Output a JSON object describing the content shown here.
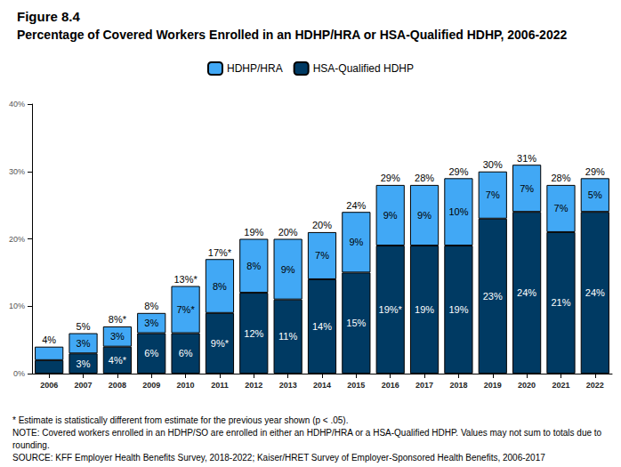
{
  "chart_data": {
    "type": "bar",
    "stacked": true,
    "data_labels": true,
    "grid": false,
    "legend": "top",
    "title": "Figure 8.4",
    "subtitle": "Percentage of Covered Workers Enrolled in an HDHP/HRA or HSA-Qualified HDHP, 2006-2022",
    "categories": [
      "2006",
      "2007",
      "2008",
      "2009",
      "2010",
      "2011",
      "2012",
      "2013",
      "2014",
      "2015",
      "2016",
      "2017",
      "2018",
      "2019",
      "2020",
      "2021",
      "2022"
    ],
    "series": [
      {
        "name": "HSA-Qualified HDHP",
        "color": "#003a63",
        "values": [
          2,
          3,
          4,
          6,
          6,
          9,
          12,
          11,
          14,
          15,
          19,
          19,
          19,
          23,
          24,
          21,
          24
        ],
        "value_labels": [
          null,
          "3%",
          "4%*",
          "6%",
          "6%",
          "9%*",
          "12%",
          "11%",
          "14%",
          "15%",
          "19%*",
          "19%",
          "19%",
          "23%",
          "24%",
          "21%",
          "24%"
        ]
      },
      {
        "name": "HDHP/HRA",
        "color": "#41a8f5",
        "values": [
          2,
          3,
          3,
          3,
          7,
          8,
          8,
          9,
          7,
          9,
          9,
          9,
          10,
          7,
          7,
          7,
          5
        ],
        "value_labels": [
          null,
          "3%",
          "3%",
          "3%",
          "7%*",
          "8%",
          "8%",
          "9%",
          "7%",
          "9%",
          "9%",
          "9%",
          "10%",
          "7%",
          "7%",
          "7%",
          "5%"
        ]
      }
    ],
    "legend_order": [
      "HDHP/HRA",
      "HSA-Qualified HDHP"
    ],
    "totals": {
      "values": [
        4,
        5,
        8,
        8,
        13,
        17,
        19,
        20,
        20,
        24,
        29,
        28,
        29,
        30,
        31,
        28,
        29
      ],
      "value_labels": [
        "4%",
        "5%",
        "8%*",
        "8%",
        "13%*",
        "17%*",
        "19%",
        "20%",
        "20%",
        "24%",
        "29%",
        "28%",
        "29%",
        "30%",
        "31%",
        "28%",
        "29%"
      ]
    },
    "ylim": [
      0,
      40
    ],
    "yticks": [
      {
        "value": 0,
        "label": "0%"
      },
      {
        "value": 10,
        "label": "10%"
      },
      {
        "value": 20,
        "label": "20%"
      },
      {
        "value": 30,
        "label": "30%"
      },
      {
        "value": 40,
        "label": "40%"
      }
    ],
    "notes": [
      "* Estimate is statistically different from estimate for the previous year shown (p < .05).",
      "NOTE: Covered workers enrolled in an HDHP/SO are enrolled in either an HDHP/HRA or a HSA-Qualified HDHP. Values may not sum to totals due to rounding.",
      "SOURCE: KFF Employer Health Benefits Survey, 2018-2022; Kaiser/HRET Survey of Employer-Sponsored Health Benefits, 2006-2017"
    ]
  }
}
